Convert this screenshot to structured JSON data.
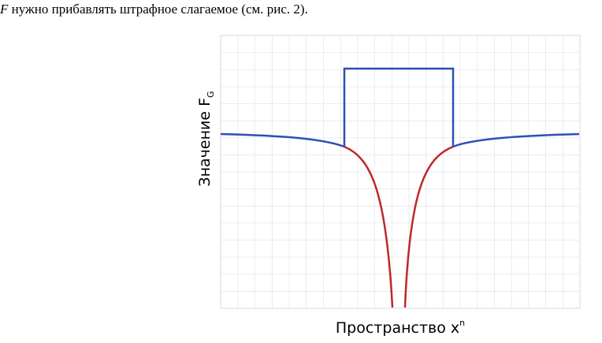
{
  "text": {
    "variable": "F",
    "sentence": "нужно прибавлять штрафное слагаемое (см. рис. 2)."
  },
  "figure": {
    "y_label": "Значение F",
    "y_label_sub": "G",
    "x_label": "Пространство x",
    "x_label_sup": "n"
  }
}
